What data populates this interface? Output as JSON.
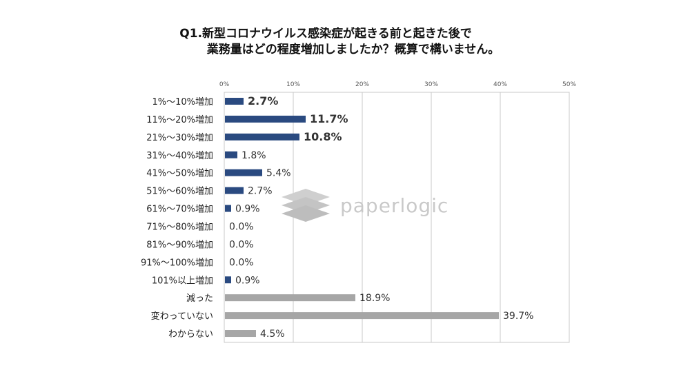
{
  "title_line1": "Q1.新型コロナウイルス感染症が起きる前と起きた後で",
  "title_line2": "業務量はどの程度増加しましたか？概算で構いません。",
  "watermark": "paperlogic",
  "colors": {
    "primary": "#2a4a80",
    "secondary": "#a6a6a6",
    "grid": "#c8c8c8",
    "watermark": "#c9c9c9"
  },
  "chart_data": {
    "type": "bar",
    "orientation": "horizontal",
    "xlim": [
      0,
      50
    ],
    "xticks": [
      "0%",
      "10%",
      "20%",
      "30%",
      "40%",
      "50%"
    ],
    "categories": [
      "1%～10%増加",
      "11%～20%増加",
      "21%～30%増加",
      "31%～40%増加",
      "41%～50%増加",
      "51%～60%増加",
      "61%～70%増加",
      "71%～80%増加",
      "81%～90%増加",
      "91%～100%増加",
      "101%以上増加",
      "減った",
      "変わっていない",
      "わからない"
    ],
    "values": [
      2.7,
      11.7,
      10.8,
      1.8,
      5.4,
      2.7,
      0.9,
      0.0,
      0.0,
      0.0,
      0.9,
      18.9,
      39.7,
      4.5
    ],
    "data_labels": [
      "2.7%",
      "11.7%",
      "10.8%",
      "1.8%",
      "5.4%",
      "2.7%",
      "0.9%",
      "0.0%",
      "0.0%",
      "0.0%",
      "0.9%",
      "18.9%",
      "39.7%",
      "4.5%"
    ],
    "bold_labels": [
      true,
      true,
      true,
      false,
      false,
      false,
      false,
      false,
      false,
      false,
      false,
      false,
      false,
      false
    ],
    "bar_colors": [
      "primary",
      "primary",
      "primary",
      "primary",
      "primary",
      "primary",
      "primary",
      "primary",
      "primary",
      "primary",
      "primary",
      "secondary",
      "secondary",
      "secondary"
    ],
    "grid": true
  }
}
